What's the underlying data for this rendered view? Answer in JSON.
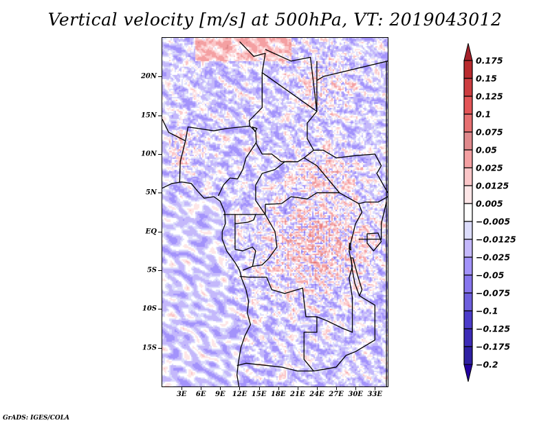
{
  "title": "Vertical velocity [m/s] at 500hPa, VT: 2019043012",
  "credit": "GrADS: IGES/COLA",
  "map": {
    "variable": "Vertical velocity",
    "units": "m/s",
    "level": "500hPa",
    "valid_time": "2019043012",
    "lon_range": [
      0,
      35
    ],
    "lat_range": [
      -20,
      25
    ],
    "lat_ticks": [
      {
        "value": 20,
        "label": "20N"
      },
      {
        "value": 15,
        "label": "15N"
      },
      {
        "value": 10,
        "label": "10N"
      },
      {
        "value": 5,
        "label": "5N"
      },
      {
        "value": 0,
        "label": "EQ"
      },
      {
        "value": -5,
        "label": "5S"
      },
      {
        "value": -10,
        "label": "10S"
      },
      {
        "value": -15,
        "label": "15S"
      }
    ],
    "lon_ticks": [
      {
        "value": 3,
        "label": "3E"
      },
      {
        "value": 6,
        "label": "6E"
      },
      {
        "value": 9,
        "label": "9E"
      },
      {
        "value": 12,
        "label": "12E"
      },
      {
        "value": 15,
        "label": "15E"
      },
      {
        "value": 18,
        "label": "18E"
      },
      {
        "value": 21,
        "label": "21E"
      },
      {
        "value": 24,
        "label": "24E"
      },
      {
        "value": 27,
        "label": "27E"
      },
      {
        "value": 30,
        "label": "30E"
      },
      {
        "value": 33,
        "label": "33E"
      }
    ]
  },
  "colorbar": {
    "labels": [
      "0.175",
      "0.15",
      "0.125",
      "0.1",
      "0.075",
      "0.05",
      "0.025",
      "0.0125",
      "0.005",
      "−0.005",
      "−0.0125",
      "−0.025",
      "−0.05",
      "−0.075",
      "−0.1",
      "−0.125",
      "−0.175",
      "−0.2"
    ],
    "levels": [
      0.175,
      0.15,
      0.125,
      0.1,
      0.075,
      0.05,
      0.025,
      0.0125,
      0.005,
      -0.005,
      -0.0125,
      -0.025,
      -0.05,
      -0.075,
      -0.1,
      -0.125,
      -0.175,
      -0.2
    ],
    "colors": [
      "#a5212a",
      "#b92b2e",
      "#cc3d40",
      "#e35557",
      "#e77071",
      "#e0898c",
      "#f4a0a2",
      "#fbc6c8",
      "#fde6e7",
      "#ffffff",
      "#dcdcfb",
      "#c4b8fb",
      "#a393fb",
      "#8776ee",
      "#6e5fdd",
      "#4c3cca",
      "#3d2cb7",
      "#2f20a3",
      "#2300a0"
    ]
  }
}
